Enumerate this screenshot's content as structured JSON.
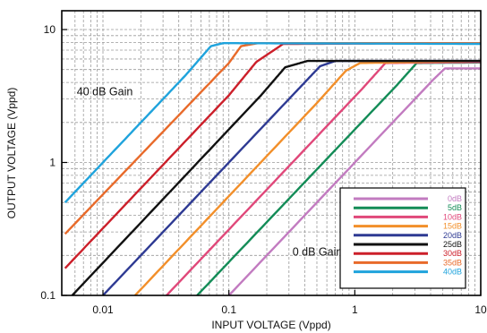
{
  "chart_data": {
    "type": "line",
    "xlabel": "INPUT VOLTAGE (Vppd)",
    "ylabel": "OUTPUT VOLTAGE  (Vppd)",
    "x_scale": "log",
    "y_scale": "log",
    "xlim": [
      0.005,
      10
    ],
    "ylim": [
      0.1,
      15
    ],
    "x_ticks": [
      0.01,
      0.1,
      1,
      10
    ],
    "x_tick_labels": [
      "0.01",
      "0.1",
      "1",
      "10"
    ],
    "y_ticks": [
      0.1,
      1,
      10
    ],
    "y_tick_labels": [
      "0.1",
      "1",
      "10"
    ],
    "grid": true,
    "legend_position": "bottom-right",
    "annotations": [
      {
        "text": "40 dB Gain",
        "x": 0.0062,
        "y": 3.2
      },
      {
        "text": "0 dB Gain",
        "x": 0.32,
        "y": 0.2
      }
    ],
    "series": [
      {
        "name": "0dB",
        "color": "#c27bc0",
        "points": [
          [
            0.1,
            0.1
          ],
          [
            4.2,
            4.2
          ],
          [
            5.2,
            5.1
          ],
          [
            10,
            5.1
          ]
        ]
      },
      {
        "name": "5dB",
        "color": "#138c57",
        "points": [
          [
            0.056,
            0.1
          ],
          [
            2.15,
            3.8
          ],
          [
            3.1,
            5.6
          ],
          [
            10,
            5.65
          ]
        ]
      },
      {
        "name": "10dB",
        "color": "#e0487a",
        "points": [
          [
            0.032,
            0.1
          ],
          [
            1.15,
            3.6
          ],
          [
            1.75,
            5.6
          ],
          [
            10,
            5.7
          ]
        ]
      },
      {
        "name": "15dB",
        "color": "#f28f2a",
        "points": [
          [
            0.018,
            0.1
          ],
          [
            0.5,
            2.8
          ],
          [
            0.85,
            4.9
          ],
          [
            1.1,
            5.6
          ],
          [
            10,
            5.8
          ]
        ]
      },
      {
        "name": "20dB",
        "color": "#2e3a93",
        "points": [
          [
            0.01,
            0.1
          ],
          [
            0.34,
            3.4
          ],
          [
            0.53,
            5.3
          ],
          [
            0.7,
            5.8
          ],
          [
            10,
            5.8
          ]
        ]
      },
      {
        "name": "25dB",
        "color": "#111111",
        "points": [
          [
            0.0057,
            0.1
          ],
          [
            0.18,
            3.2
          ],
          [
            0.28,
            5.2
          ],
          [
            0.42,
            5.8
          ],
          [
            10,
            5.8
          ]
        ]
      },
      {
        "name": "30dB",
        "color": "#cc1f2a",
        "points": [
          [
            0.005,
            0.16
          ],
          [
            0.1,
            3.2
          ],
          [
            0.165,
            5.7
          ],
          [
            0.27,
            7.8
          ],
          [
            10,
            7.9
          ]
        ]
      },
      {
        "name": "35dB",
        "color": "#e86a2a",
        "points": [
          [
            0.005,
            0.29
          ],
          [
            0.1,
            5.6
          ],
          [
            0.125,
            7.5
          ],
          [
            0.17,
            7.9
          ],
          [
            10,
            7.9
          ]
        ]
      },
      {
        "name": "40dB",
        "color": "#1fa3dc",
        "points": [
          [
            0.005,
            0.5
          ],
          [
            0.045,
            4.5
          ],
          [
            0.072,
            7.5
          ],
          [
            0.09,
            7.9
          ],
          [
            10,
            7.8
          ]
        ]
      }
    ]
  }
}
